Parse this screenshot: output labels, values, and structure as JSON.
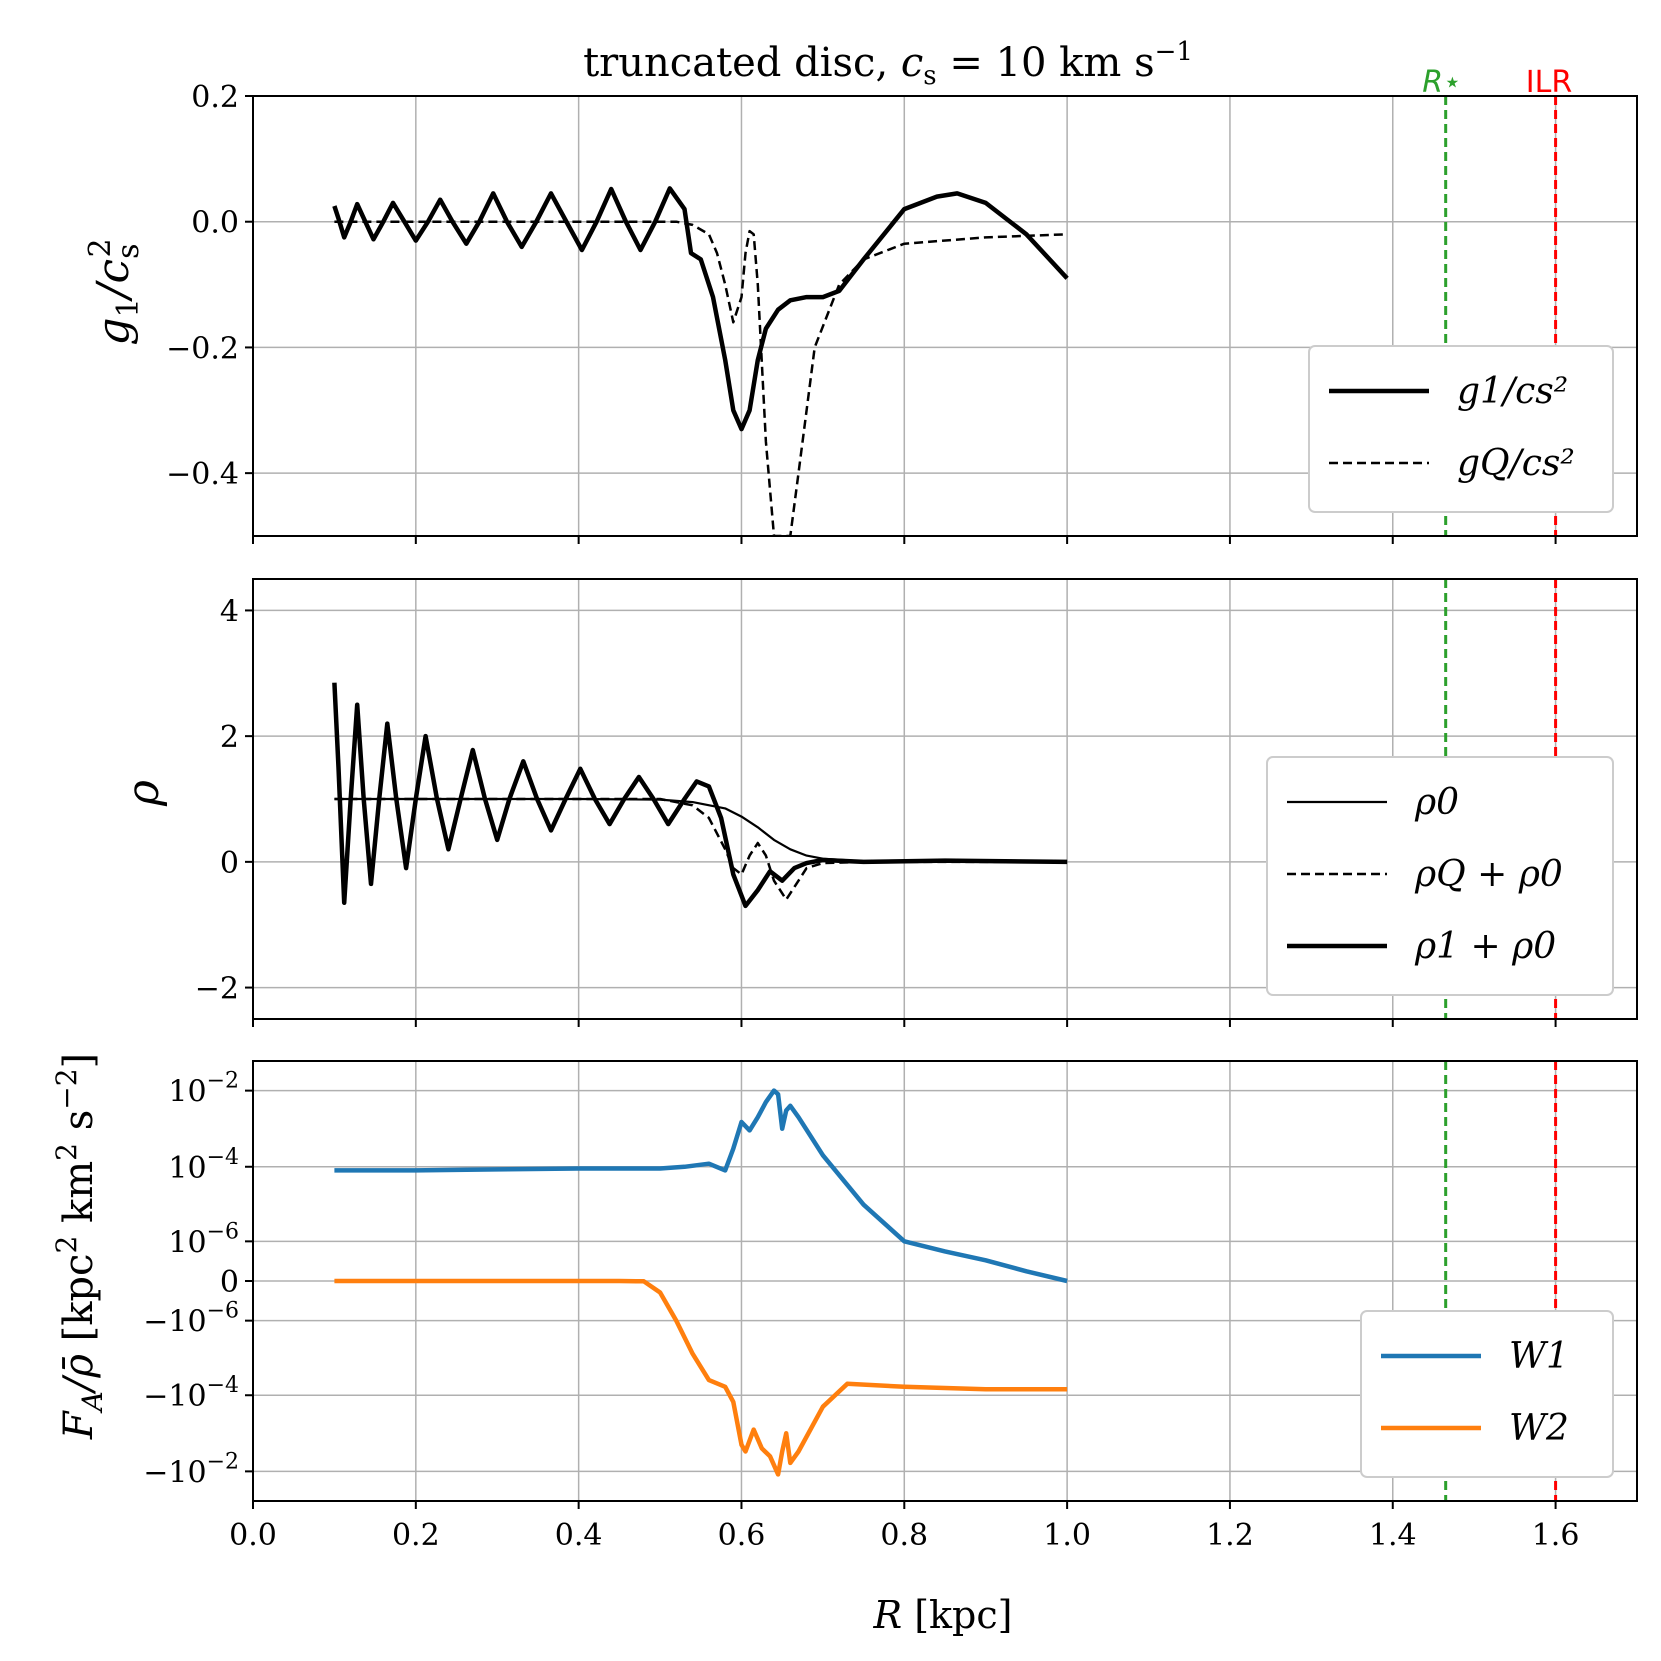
{
  "title": "truncated disc, c_s = 10 km s^-1",
  "colors": {
    "green": "#2ca02c",
    "red": "#ff0000",
    "blue": "#1f77b4",
    "orange": "#ff7f0e",
    "grid": "#b0b0b0"
  },
  "markers": [
    {
      "label": "R⋆",
      "x": 1.465,
      "color": "#2ca02c"
    },
    {
      "label": "ILR",
      "x": 1.6,
      "color": "#ff0000"
    }
  ],
  "xaxis": {
    "label": "R [kpc]",
    "lim": [
      0.0,
      1.7
    ],
    "ticks": [
      0.0,
      0.2,
      0.4,
      0.6,
      0.8,
      1.0,
      1.2,
      1.4,
      1.6
    ],
    "tick_labels": [
      "0.0",
      "0.2",
      "0.4",
      "0.6",
      "0.8",
      "1.0",
      "1.2",
      "1.4",
      "1.6"
    ]
  },
  "chart_data": [
    {
      "type": "line",
      "ylabel": "g1/cs²",
      "ylim": [
        -0.5,
        0.2
      ],
      "yticks": [
        0.2,
        0.0,
        -0.2,
        -0.4
      ],
      "ytick_labels": [
        "0.2",
        "0.0",
        "−0.2",
        "−0.4"
      ],
      "legend": [
        "g1/cs²",
        "gQ/cs²"
      ],
      "series": [
        {
          "name": "g1/cs²",
          "style": "solid",
          "color": "#000000",
          "x": [
            0.1,
            0.105,
            0.112,
            0.12,
            0.128,
            0.138,
            0.148,
            0.16,
            0.172,
            0.186,
            0.2,
            0.215,
            0.23,
            0.245,
            0.262,
            0.278,
            0.295,
            0.312,
            0.33,
            0.348,
            0.366,
            0.385,
            0.404,
            0.422,
            0.44,
            0.458,
            0.476,
            0.494,
            0.512,
            0.53,
            0.538,
            0.55,
            0.565,
            0.58,
            0.59,
            0.6,
            0.61,
            0.62,
            0.63,
            0.645,
            0.66,
            0.68,
            0.7,
            0.72,
            0.75,
            0.8,
            0.84,
            0.865,
            0.9,
            0.95,
            1.0
          ],
          "y": [
            0.025,
            0.005,
            -0.025,
            0.0,
            0.028,
            0.0,
            -0.028,
            0.0,
            0.03,
            0.0,
            -0.03,
            0.0,
            0.035,
            0.0,
            -0.035,
            0.0,
            0.045,
            0.0,
            -0.04,
            0.0,
            0.045,
            0.0,
            -0.045,
            0.0,
            0.052,
            0.0,
            -0.045,
            0.0,
            0.053,
            0.02,
            -0.05,
            -0.06,
            -0.12,
            -0.22,
            -0.3,
            -0.33,
            -0.3,
            -0.22,
            -0.17,
            -0.14,
            -0.125,
            -0.12,
            -0.12,
            -0.11,
            -0.06,
            0.02,
            0.04,
            0.045,
            0.03,
            -0.02,
            -0.09
          ]
        },
        {
          "name": "gQ/cs²",
          "style": "dashed",
          "color": "#000000",
          "x": [
            0.1,
            0.2,
            0.3,
            0.4,
            0.5,
            0.52,
            0.54,
            0.56,
            0.57,
            0.58,
            0.59,
            0.6,
            0.605,
            0.61,
            0.615,
            0.62,
            0.63,
            0.64,
            0.65,
            0.66,
            0.67,
            0.69,
            0.72,
            0.75,
            0.8,
            0.9,
            1.0
          ],
          "y": [
            0.0,
            0.0,
            0.0,
            0.0,
            0.0,
            0.0,
            -0.005,
            -0.02,
            -0.05,
            -0.1,
            -0.16,
            -0.12,
            -0.05,
            -0.015,
            -0.02,
            -0.1,
            -0.35,
            -0.5,
            -0.5,
            -0.5,
            -0.4,
            -0.2,
            -0.1,
            -0.06,
            -0.035,
            -0.025,
            -0.02
          ]
        }
      ]
    },
    {
      "type": "line",
      "ylabel": "ρ",
      "ylim": [
        -2.5,
        4.5
      ],
      "yticks": [
        4,
        2,
        0,
        -2
      ],
      "ytick_labels": [
        "4",
        "2",
        "0",
        "−2"
      ],
      "legend": [
        "ρ0",
        "ρQ + ρ0",
        "ρ1 + ρ0"
      ],
      "series": [
        {
          "name": "ρ0",
          "style": "thin",
          "color": "#000000",
          "x": [
            0.1,
            0.4,
            0.5,
            0.54,
            0.58,
            0.6,
            0.62,
            0.64,
            0.66,
            0.68,
            0.7,
            0.75,
            0.8,
            1.0
          ],
          "y": [
            1.0,
            1.0,
            0.99,
            0.95,
            0.85,
            0.72,
            0.55,
            0.35,
            0.2,
            0.1,
            0.05,
            0.01,
            0.0,
            0.0
          ]
        },
        {
          "name": "ρQ + ρ0",
          "style": "dashed",
          "color": "#000000",
          "x": [
            0.1,
            0.4,
            0.5,
            0.54,
            0.56,
            0.58,
            0.59,
            0.6,
            0.61,
            0.62,
            0.63,
            0.64,
            0.65,
            0.655,
            0.66,
            0.67,
            0.68,
            0.7,
            0.75,
            0.8,
            1.0
          ],
          "y": [
            1.0,
            1.0,
            1.0,
            0.9,
            0.7,
            0.2,
            -0.1,
            -0.2,
            0.1,
            0.3,
            0.1,
            -0.3,
            -0.5,
            -0.6,
            -0.5,
            -0.3,
            -0.1,
            -0.02,
            0.0,
            0.0,
            0.0
          ]
        },
        {
          "name": "ρ1 + ρ0",
          "style": "solid",
          "color": "#000000",
          "x": [
            0.1,
            0.105,
            0.112,
            0.12,
            0.128,
            0.136,
            0.145,
            0.155,
            0.165,
            0.176,
            0.188,
            0.2,
            0.212,
            0.226,
            0.24,
            0.255,
            0.27,
            0.285,
            0.3,
            0.315,
            0.332,
            0.349,
            0.366,
            0.384,
            0.402,
            0.42,
            0.438,
            0.456,
            0.474,
            0.492,
            0.51,
            0.53,
            0.545,
            0.56,
            0.575,
            0.59,
            0.605,
            0.62,
            0.635,
            0.65,
            0.665,
            0.68,
            0.7,
            0.75,
            0.85,
            1.0
          ],
          "y": [
            2.85,
            1.5,
            -0.65,
            1.0,
            2.5,
            1.0,
            -0.35,
            1.0,
            2.2,
            1.0,
            -0.1,
            1.0,
            2.0,
            1.0,
            0.2,
            1.0,
            1.78,
            1.0,
            0.35,
            1.0,
            1.6,
            1.0,
            0.5,
            1.0,
            1.48,
            1.0,
            0.6,
            1.0,
            1.35,
            1.0,
            0.6,
            1.0,
            1.28,
            1.2,
            0.7,
            -0.2,
            -0.7,
            -0.45,
            -0.15,
            -0.3,
            -0.1,
            -0.02,
            0.03,
            0.0,
            0.02,
            0.0
          ]
        }
      ]
    },
    {
      "type": "line",
      "ylabel": "F_A/ρ̄ [kpc² km² s⁻²]",
      "yscale": "symlog",
      "ylim_raw": [
        -0.06,
        0.06
      ],
      "yticks": [
        0.01,
        0.0001,
        1e-06,
        0,
        -1e-06,
        -0.0001,
        -0.01
      ],
      "ytick_labels": [
        "10^-2",
        "10^-4",
        "10^-6",
        "0",
        "−10^-6",
        "−10^-4",
        "−10^-2"
      ],
      "legend": [
        "W1",
        "W2"
      ],
      "series": [
        {
          "name": "W1",
          "style": "solid",
          "color": "#1f77b4",
          "x": [
            0.1,
            0.2,
            0.3,
            0.4,
            0.5,
            0.53,
            0.56,
            0.58,
            0.59,
            0.6,
            0.61,
            0.62,
            0.63,
            0.64,
            0.645,
            0.65,
            0.655,
            0.66,
            0.67,
            0.7,
            0.75,
            0.8,
            0.85,
            0.9,
            0.95,
            1.0
          ],
          "y": [
            8e-05,
            8e-05,
            8.5e-05,
            9e-05,
            9e-05,
            0.0001,
            0.00012,
            8e-05,
            0.0003,
            0.0015,
            0.0009,
            0.002,
            0.005,
            0.01,
            0.008,
            0.001,
            0.003,
            0.004,
            0.002,
            0.0002,
            1e-05,
            1e-06,
            5e-07,
            2.5e-07,
            8e-08,
            0.0
          ]
        },
        {
          "name": "W2",
          "style": "solid",
          "color": "#ff7f0e",
          "x": [
            0.1,
            0.3,
            0.45,
            0.48,
            0.5,
            0.52,
            0.54,
            0.56,
            0.58,
            0.59,
            0.6,
            0.605,
            0.615,
            0.625,
            0.635,
            0.645,
            0.65,
            0.655,
            0.66,
            0.67,
            0.7,
            0.73,
            0.8,
            0.9,
            1.0
          ],
          "y": [
            0.0,
            0.0,
            0.0,
            -2e-09,
            -1e-07,
            -1e-06,
            -8e-06,
            -4e-05,
            -6e-05,
            -0.00015,
            -0.002,
            -0.003,
            -0.0008,
            -0.0025,
            -0.004,
            -0.012,
            -0.003,
            -0.001,
            -0.006,
            -0.003,
            -0.0002,
            -5e-05,
            -6e-05,
            -7e-05,
            -7e-05
          ]
        }
      ]
    }
  ]
}
